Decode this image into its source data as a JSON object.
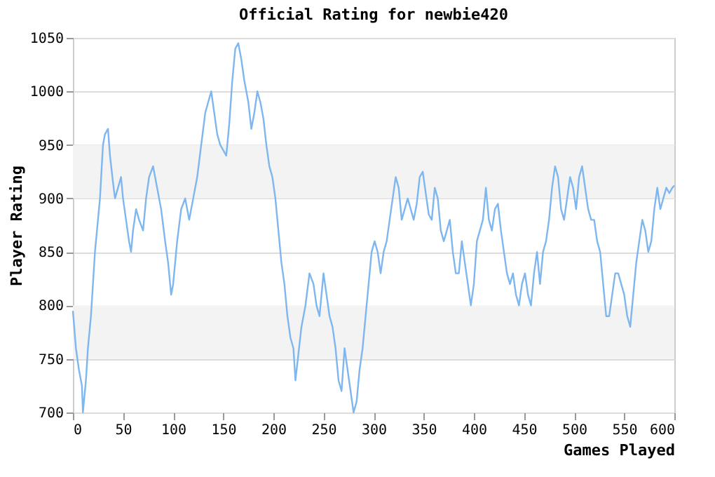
{
  "chart_data": {
    "type": "line",
    "title": "Official Rating for newbie420",
    "xlabel": "Games Played",
    "ylabel": "Player Rating",
    "xlim": [
      0,
      600
    ],
    "xticks": [
      0,
      50,
      100,
      150,
      200,
      250,
      300,
      350,
      400,
      450,
      500,
      550,
      600
    ],
    "ylim": [
      700,
      1050
    ],
    "yticks": [
      700,
      750,
      800,
      850,
      900,
      950,
      1000,
      1050
    ],
    "grid": "y",
    "marker": "none",
    "line_style": "solid",
    "bands": [
      {
        "axis": "y",
        "from": 750,
        "to": 800,
        "color": "#f3f3f3"
      },
      {
        "axis": "y",
        "from": 900,
        "to": 950,
        "color": "#f3f3f3"
      }
    ],
    "series": [
      {
        "color": "#7eb6f0",
        "x": [
          0,
          3,
          6,
          9,
          10,
          13,
          15,
          18,
          20,
          22,
          24,
          27,
          30,
          32,
          35,
          37,
          40,
          42,
          45,
          48,
          50,
          53,
          56,
          58,
          60,
          63,
          66,
          70,
          73,
          76,
          80,
          84,
          88,
          92,
          95,
          98,
          100,
          104,
          108,
          112,
          116,
          120,
          124,
          128,
          132,
          135,
          138,
          141,
          144,
          147,
          150,
          153,
          156,
          159,
          162,
          165,
          168,
          171,
          175,
          178,
          181,
          184,
          187,
          190,
          193,
          196,
          199,
          202,
          205,
          208,
          211,
          214,
          217,
          220,
          222,
          225,
          228,
          232,
          236,
          240,
          243,
          246,
          250,
          253,
          256,
          259,
          262,
          265,
          268,
          271,
          274,
          277,
          280,
          283,
          286,
          289,
          292,
          295,
          298,
          301,
          304,
          307,
          310,
          313,
          316,
          319,
          322,
          325,
          328,
          331,
          334,
          337,
          340,
          343,
          346,
          349,
          352,
          355,
          358,
          361,
          364,
          367,
          370,
          373,
          376,
          379,
          382,
          385,
          388,
          391,
          394,
          397,
          400,
          403,
          406,
          409,
          412,
          415,
          418,
          421,
          424,
          427,
          430,
          433,
          436,
          439,
          442,
          445,
          448,
          451,
          454,
          457,
          460,
          463,
          466,
          469,
          472,
          475,
          478,
          481,
          484,
          487,
          490,
          493,
          496,
          499,
          502,
          505,
          508,
          511,
          514,
          517,
          520,
          523,
          526,
          529,
          532,
          535,
          538,
          541,
          544,
          547,
          550,
          553,
          556,
          559,
          562,
          565,
          568,
          571,
          574,
          577,
          580,
          583,
          586,
          589,
          592,
          595,
          598,
          600
        ],
        "values": [
          795,
          760,
          740,
          725,
          700,
          730,
          760,
          790,
          820,
          850,
          870,
          900,
          950,
          960,
          965,
          940,
          915,
          900,
          910,
          920,
          900,
          880,
          860,
          850,
          870,
          890,
          880,
          870,
          900,
          920,
          930,
          910,
          890,
          860,
          840,
          810,
          820,
          860,
          890,
          900,
          880,
          900,
          920,
          950,
          980,
          990,
          1000,
          980,
          960,
          950,
          945,
          940,
          970,
          1010,
          1040,
          1045,
          1030,
          1010,
          990,
          965,
          980,
          1000,
          990,
          975,
          950,
          930,
          920,
          900,
          870,
          840,
          820,
          790,
          770,
          760,
          730,
          755,
          780,
          800,
          830,
          820,
          800,
          790,
          830,
          810,
          790,
          780,
          760,
          730,
          720,
          760,
          740,
          720,
          700,
          710,
          740,
          760,
          790,
          820,
          850,
          860,
          850,
          830,
          850,
          860,
          880,
          900,
          920,
          910,
          880,
          890,
          900,
          890,
          880,
          895,
          920,
          925,
          905,
          885,
          880,
          910,
          900,
          870,
          860,
          870,
          880,
          850,
          830,
          830,
          860,
          840,
          820,
          800,
          820,
          860,
          870,
          880,
          910,
          880,
          870,
          890,
          895,
          870,
          850,
          830,
          820,
          830,
          810,
          800,
          820,
          830,
          810,
          800,
          830,
          850,
          820,
          850,
          860,
          880,
          910,
          930,
          920,
          890,
          880,
          900,
          920,
          910,
          890,
          920,
          930,
          910,
          890,
          880,
          880,
          860,
          850,
          820,
          790,
          790,
          810,
          830,
          830,
          820,
          810,
          790,
          780,
          810,
          840,
          860,
          880,
          870,
          850,
          860,
          890,
          910,
          890,
          900,
          910,
          905,
          910,
          912
        ]
      }
    ]
  }
}
